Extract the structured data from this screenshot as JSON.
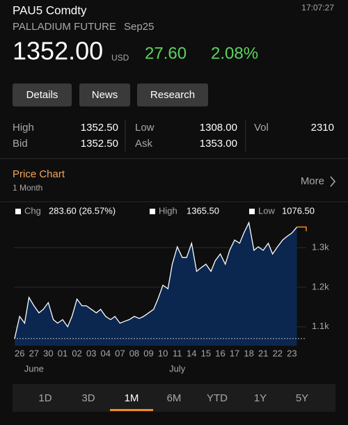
{
  "header": {
    "ticker": "PAU5 Comdty",
    "time": "17:07:27",
    "name": "PALLADIUM FUTURE",
    "contract": "Sep25",
    "price": "1352.00",
    "currency": "USD",
    "change": "27.60",
    "change_pct": "2.08%"
  },
  "buttons": [
    "Details",
    "News",
    "Research"
  ],
  "stats": [
    [
      {
        "label": "High",
        "value": "1352.50"
      },
      {
        "label": "Low",
        "value": "1308.00"
      },
      {
        "label": "Vol",
        "value": "2310"
      }
    ],
    [
      {
        "label": "Bid",
        "value": "1352.50"
      },
      {
        "label": "Ask",
        "value": "1353.00"
      }
    ]
  ],
  "section": {
    "title": "Price Chart",
    "period": "1 Month",
    "more": "More"
  },
  "chart_data": {
    "type": "area",
    "legend": [
      {
        "label": "Chg",
        "value": "283.60 (26.57%)"
      },
      {
        "label": "High",
        "value": "1365.50"
      },
      {
        "label": "Low",
        "value": "1076.50"
      }
    ],
    "x": [
      -0.35,
      0,
      0.35,
      0.65,
      1,
      1.35,
      1.65,
      2,
      2.35,
      2.65,
      3,
      3.35,
      3.65,
      4,
      4.35,
      4.65,
      5,
      5.35,
      5.65,
      6,
      6.35,
      6.65,
      7,
      7.35,
      7.65,
      8,
      8.35,
      8.65,
      9,
      9.35,
      9.65,
      10,
      10.35,
      10.65,
      11,
      11.35,
      11.65,
      12,
      12.35,
      12.65,
      13,
      13.35,
      13.65,
      14,
      14.35,
      14.65,
      15,
      15.35,
      15.65,
      16,
      16.35,
      16.65,
      17,
      17.35,
      17.65,
      18,
      18.35,
      18.65,
      19,
      19.35
    ],
    "series": [
      {
        "color": "#ffffff",
        "fill": "#0b2750",
        "values": [
          1070,
          1126,
          1109,
          1174,
          1153,
          1135,
          1144,
          1161,
          1118,
          1109,
          1118,
          1100,
          1126,
          1170,
          1153,
          1153,
          1144,
          1135,
          1144,
          1126,
          1118,
          1126,
          1109,
          1114,
          1118,
          1126,
          1121,
          1126,
          1135,
          1144,
          1170,
          1205,
          1196,
          1258,
          1302,
          1275,
          1275,
          1311,
          1240,
          1249,
          1258,
          1240,
          1267,
          1284,
          1258,
          1293,
          1319,
          1311,
          1337,
          1363,
          1293,
          1302,
          1293,
          1311,
          1284,
          1302,
          1319,
          1328,
          1337,
          1352
        ]
      }
    ],
    "last_color": "#f28c28",
    "xlim": [
      -0.4,
      20
    ],
    "ylim": [
      1052,
      1372
    ],
    "xticks": [
      {
        "value": 0,
        "label": "26"
      },
      {
        "value": 1,
        "label": "27"
      },
      {
        "value": 2,
        "label": "30"
      },
      {
        "value": 3,
        "label": "01"
      },
      {
        "value": 4,
        "label": "02"
      },
      {
        "value": 5,
        "label": "03"
      },
      {
        "value": 6,
        "label": "04"
      },
      {
        "value": 7,
        "label": "07"
      },
      {
        "value": 8,
        "label": "08"
      },
      {
        "value": 9,
        "label": "09"
      },
      {
        "value": 10,
        "label": "10"
      },
      {
        "value": 11,
        "label": "11"
      },
      {
        "value": 12,
        "label": "14"
      },
      {
        "value": 13,
        "label": "15"
      },
      {
        "value": 14,
        "label": "16"
      },
      {
        "value": 15,
        "label": "17"
      },
      {
        "value": 16,
        "label": "18"
      },
      {
        "value": 17,
        "label": "21"
      },
      {
        "value": 18,
        "label": "22"
      },
      {
        "value": 19,
        "label": "23"
      }
    ],
    "months": [
      {
        "value": 1,
        "label": "June"
      },
      {
        "value": 11,
        "label": "July"
      }
    ],
    "yticks": [
      {
        "value": 1100,
        "label": "1.1k"
      },
      {
        "value": 1200,
        "label": "1.2k"
      },
      {
        "value": 1300,
        "label": "1.3k"
      }
    ],
    "grid": true
  },
  "tabs": {
    "items": [
      "1D",
      "3D",
      "1M",
      "6M",
      "YTD",
      "1Y",
      "5Y"
    ],
    "selected": 2
  }
}
